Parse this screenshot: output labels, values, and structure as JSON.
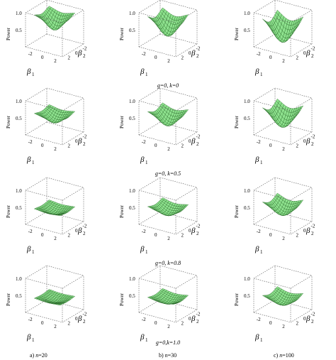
{
  "figure": {
    "z_label": "Power",
    "x_label": "β",
    "x_sub": "1",
    "y_label": "β",
    "y_sub": "2",
    "z_ticks": [
      "1.0",
      "0.5",
      "0"
    ],
    "x_ticks": [
      "-2",
      "0",
      "2"
    ],
    "y_ticks": [
      "2",
      "0",
      "-2"
    ],
    "surface_color": "#8fe38f",
    "mesh_color": "#1f5f1f"
  },
  "row_captions": [
    "g=0, k=0",
    "g=0, k=0.5",
    "g=0, k=0.8",
    "g=0,k=1.0"
  ],
  "column_captions": [
    {
      "prefix": "a) ",
      "var": "n",
      "value": "=20"
    },
    {
      "prefix": "b) ",
      "var": "n",
      "value": "=30"
    },
    {
      "prefix": "c) ",
      "var": "n",
      "value": "=100"
    }
  ],
  "chart_data": {
    "type": "surface3d",
    "rows": [
      "g=0, k=0",
      "g=0, k=0.5",
      "g=0, k=0.8",
      "g=0,k=1.0"
    ],
    "columns": [
      "n=20",
      "n=30",
      "n=100"
    ],
    "x_range": [
      -3,
      3
    ],
    "y_range": [
      -3,
      3
    ],
    "z_range": [
      0,
      1
    ],
    "surface_depth_at_zero": [
      [
        0.55,
        0.75,
        0.95
      ],
      [
        0.35,
        0.55,
        0.8
      ],
      [
        0.2,
        0.35,
        0.55
      ],
      [
        0.15,
        0.25,
        0.4
      ]
    ],
    "surface_top": [
      [
        1.0,
        1.0,
        1.0
      ],
      [
        0.65,
        0.75,
        0.95
      ],
      [
        0.45,
        0.55,
        0.75
      ],
      [
        0.4,
        0.45,
        0.55
      ]
    ]
  }
}
